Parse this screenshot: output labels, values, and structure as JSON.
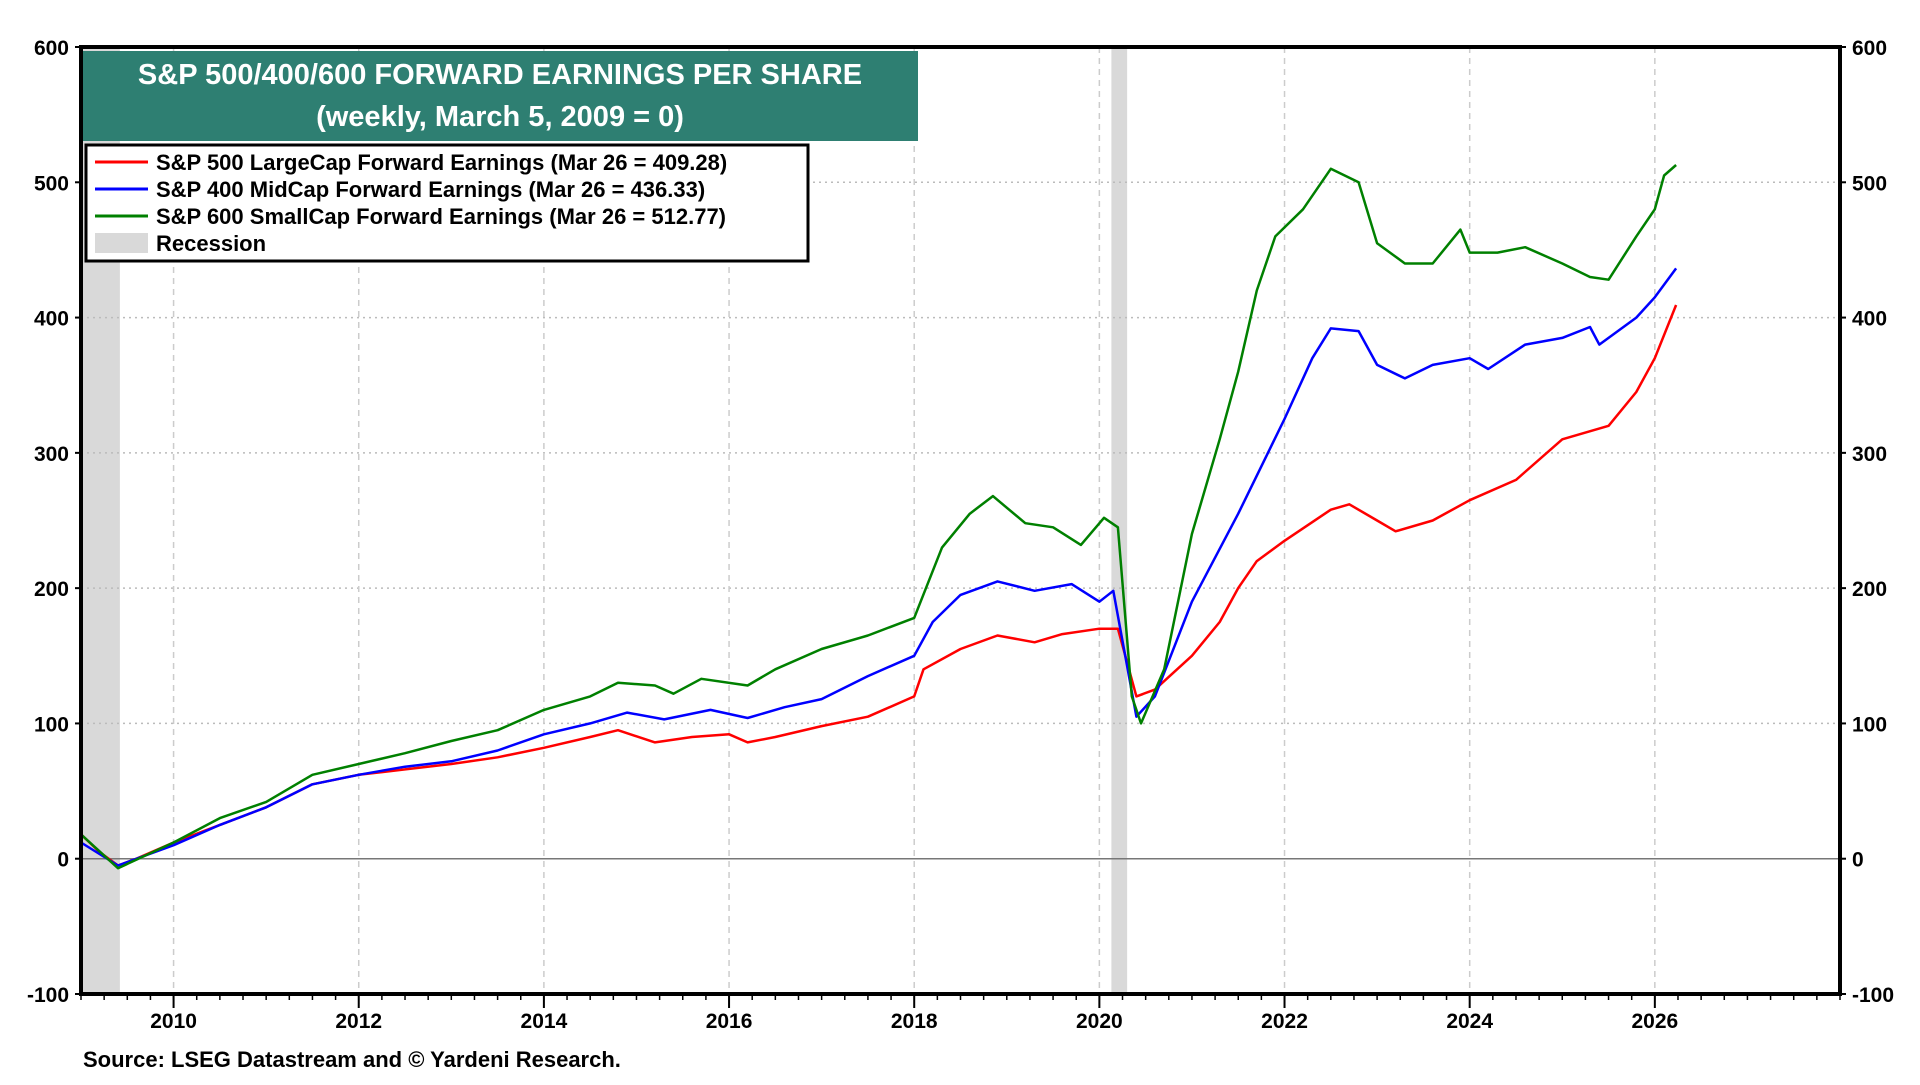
{
  "chart_data": {
    "type": "line",
    "title": "S&P 500/400/600 FORWARD EARNINGS PER SHARE",
    "subtitle": "(weekly, March 5, 2009 = 0)",
    "source": "Source: LSEG Datastream and © Yardeni Research.",
    "xlim": [
      2009,
      2028
    ],
    "ylim": [
      -100,
      600
    ],
    "x_ticks": [
      2010,
      2012,
      2014,
      2016,
      2018,
      2020,
      2022,
      2024,
      2026
    ],
    "y_ticks": [
      -100,
      0,
      100,
      200,
      300,
      400,
      500,
      600
    ],
    "grid": true,
    "legend_placement": "top-left",
    "title_bg_color": "#2e7f72",
    "recession_color": "#d9d9d9",
    "recessions": [
      [
        2009.0,
        2009.42
      ],
      [
        2020.13,
        2020.3
      ]
    ],
    "recession_label": "Recession",
    "series": [
      {
        "name": "S&P 500 LargeCap Forward Earnings (Mar 26 = 409.28)",
        "color": "#ff0000",
        "x": [
          2009.0,
          2009.2,
          2009.4,
          2009.6,
          2010.0,
          2010.5,
          2011.0,
          2011.5,
          2012.0,
          2012.5,
          2013.0,
          2013.5,
          2014.0,
          2014.5,
          2014.8,
          2015.2,
          2015.6,
          2016.0,
          2016.2,
          2016.5,
          2017.0,
          2017.5,
          2018.0,
          2018.1,
          2018.5,
          2018.9,
          2019.3,
          2019.6,
          2020.0,
          2020.2,
          2020.4,
          2020.6,
          2021.0,
          2021.3,
          2021.5,
          2021.7,
          2022.0,
          2022.5,
          2022.7,
          2023.0,
          2023.2,
          2023.6,
          2024.0,
          2024.5,
          2025.0,
          2025.5,
          2025.8,
          2026.0,
          2026.23
        ],
        "y": [
          18,
          5,
          -5,
          0,
          12,
          25,
          38,
          55,
          62,
          66,
          70,
          75,
          82,
          90,
          95,
          86,
          90,
          92,
          86,
          90,
          98,
          105,
          120,
          140,
          155,
          165,
          160,
          166,
          170,
          170,
          120,
          125,
          150,
          175,
          200,
          220,
          235,
          258,
          262,
          250,
          242,
          250,
          265,
          280,
          310,
          320,
          345,
          370,
          409.28
        ]
      },
      {
        "name": "S&P 400 MidCap Forward Earnings (Mar 26 = 436.33)",
        "color": "#0000ff",
        "x": [
          2009.0,
          2009.4,
          2010.0,
          2010.5,
          2011.0,
          2011.5,
          2012.0,
          2012.5,
          2013.0,
          2013.5,
          2014.0,
          2014.5,
          2014.9,
          2015.3,
          2015.8,
          2016.2,
          2016.6,
          2017.0,
          2017.5,
          2018.0,
          2018.2,
          2018.5,
          2018.9,
          2019.3,
          2019.7,
          2020.0,
          2020.15,
          2020.4,
          2020.6,
          2021.0,
          2021.5,
          2022.0,
          2022.3,
          2022.5,
          2022.8,
          2023.0,
          2023.3,
          2023.6,
          2024.0,
          2024.2,
          2024.6,
          2025.0,
          2025.3,
          2025.4,
          2025.8,
          2026.0,
          2026.23
        ],
        "y": [
          12,
          -5,
          10,
          25,
          38,
          55,
          62,
          68,
          72,
          80,
          92,
          100,
          108,
          103,
          110,
          104,
          112,
          118,
          135,
          150,
          175,
          195,
          205,
          198,
          203,
          190,
          198,
          105,
          120,
          190,
          255,
          325,
          370,
          392,
          390,
          365,
          355,
          365,
          370,
          362,
          380,
          385,
          393,
          380,
          400,
          415,
          436.33
        ]
      },
      {
        "name": "S&P 600 SmallCap Forward Earnings (Mar 26 = 512.77)",
        "color": "#008000",
        "x": [
          2009.0,
          2009.4,
          2010.0,
          2010.5,
          2011.0,
          2011.5,
          2012.0,
          2012.5,
          2013.0,
          2013.5,
          2014.0,
          2014.5,
          2014.8,
          2015.2,
          2015.4,
          2015.7,
          2016.2,
          2016.5,
          2017.0,
          2017.5,
          2018.0,
          2018.3,
          2018.6,
          2018.85,
          2019.2,
          2019.5,
          2019.8,
          2020.05,
          2020.2,
          2020.35,
          2020.45,
          2020.7,
          2021.0,
          2021.3,
          2021.5,
          2021.7,
          2021.9,
          2022.2,
          2022.5,
          2022.8,
          2023.0,
          2023.3,
          2023.6,
          2023.9,
          2024.0,
          2024.3,
          2024.6,
          2025.0,
          2025.3,
          2025.5,
          2025.8,
          2026.0,
          2026.1,
          2026.23
        ],
        "y": [
          18,
          -7,
          12,
          30,
          42,
          62,
          70,
          78,
          87,
          95,
          110,
          120,
          130,
          128,
          122,
          133,
          128,
          140,
          155,
          165,
          178,
          230,
          255,
          268,
          248,
          245,
          232,
          252,
          245,
          120,
          100,
          140,
          240,
          310,
          360,
          420,
          460,
          480,
          510,
          500,
          455,
          440,
          440,
          465,
          448,
          448,
          452,
          440,
          430,
          428,
          460,
          480,
          505,
          512.77
        ]
      }
    ]
  }
}
